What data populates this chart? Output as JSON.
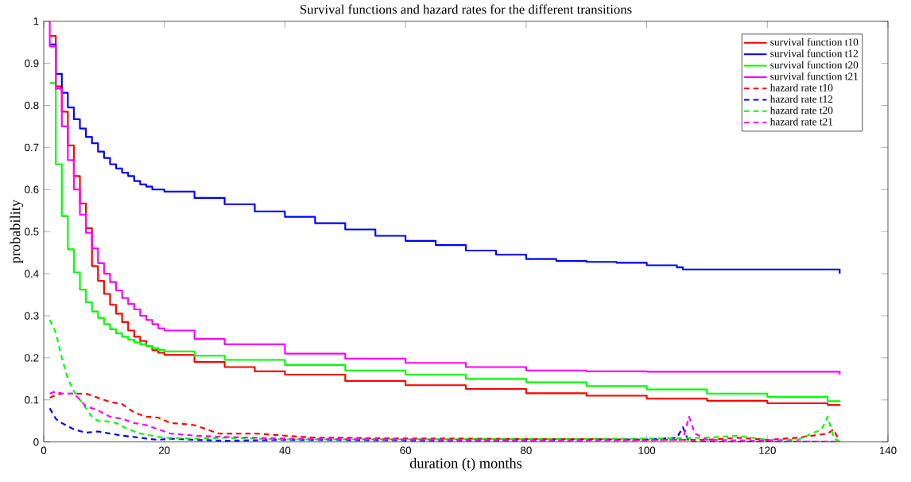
{
  "chart_data": {
    "type": "line",
    "title": "Survival functions and hazard rates for the different transitions",
    "xlabel": "duration (t) months",
    "ylabel": "probability",
    "xlim": [
      0,
      140
    ],
    "xticks": [
      0,
      20,
      40,
      60,
      80,
      100,
      120,
      140
    ],
    "ylim": [
      0,
      1
    ],
    "yticks": [
      0,
      0.1,
      0.2,
      0.3,
      0.4,
      0.5,
      0.6,
      0.7,
      0.8,
      0.9,
      1
    ],
    "grid": false,
    "legend": "top right",
    "series": [
      {
        "name": "survival function t10",
        "type": "step",
        "line_style": "solid",
        "color": "#ff0000",
        "x": [
          1,
          2,
          3,
          4,
          5,
          6,
          7,
          8,
          9,
          10,
          11,
          12,
          13,
          14,
          15,
          16,
          17,
          18,
          19,
          20,
          25,
          30,
          35,
          40,
          50,
          60,
          70,
          80,
          90,
          100,
          110,
          120,
          130,
          132
        ],
        "values": [
          0.965,
          0.845,
          0.785,
          0.705,
          0.632,
          0.567,
          0.508,
          0.418,
          0.383,
          0.352,
          0.326,
          0.305,
          0.285,
          0.265,
          0.25,
          0.24,
          0.228,
          0.218,
          0.212,
          0.207,
          0.19,
          0.178,
          0.168,
          0.16,
          0.145,
          0.135,
          0.126,
          0.116,
          0.11,
          0.103,
          0.098,
          0.092,
          0.088,
          0.086
        ]
      },
      {
        "name": "survival function t12",
        "type": "step",
        "line_style": "solid",
        "color": "#0000ff",
        "x": [
          1,
          2,
          3,
          4,
          5,
          6,
          7,
          8,
          9,
          10,
          11,
          12,
          13,
          14,
          15,
          16,
          17,
          18,
          20,
          25,
          30,
          35,
          40,
          45,
          50,
          55,
          60,
          65,
          70,
          75,
          80,
          85,
          90,
          95,
          100,
          105,
          106,
          132,
          132
        ],
        "values": [
          0.945,
          0.875,
          0.83,
          0.795,
          0.767,
          0.745,
          0.725,
          0.71,
          0.69,
          0.675,
          0.66,
          0.65,
          0.64,
          0.632,
          0.62,
          0.612,
          0.607,
          0.6,
          0.595,
          0.58,
          0.565,
          0.548,
          0.535,
          0.52,
          0.505,
          0.49,
          0.478,
          0.468,
          0.455,
          0.445,
          0.435,
          0.43,
          0.428,
          0.426,
          0.42,
          0.415,
          0.41,
          0.41,
          0.4
        ]
      },
      {
        "name": "survival function t20",
        "type": "step",
        "line_style": "solid",
        "color": "#00ff00",
        "x": [
          1,
          2,
          3,
          4,
          5,
          6,
          7,
          8,
          9,
          10,
          11,
          12,
          13,
          14,
          15,
          16,
          17,
          18,
          19,
          20,
          25,
          30,
          40,
          50,
          60,
          70,
          80,
          90,
          100,
          110,
          120,
          130,
          132
        ],
        "values": [
          0.853,
          0.66,
          0.537,
          0.458,
          0.403,
          0.362,
          0.332,
          0.31,
          0.295,
          0.28,
          0.268,
          0.258,
          0.25,
          0.243,
          0.237,
          0.232,
          0.228,
          0.223,
          0.219,
          0.215,
          0.205,
          0.195,
          0.183,
          0.17,
          0.16,
          0.15,
          0.142,
          0.133,
          0.125,
          0.115,
          0.107,
          0.097,
          0.095
        ]
      },
      {
        "name": "survival function t21",
        "type": "step",
        "line_style": "solid",
        "color": "#ff00ff",
        "x": [
          1,
          1,
          2,
          3,
          4,
          5,
          6,
          7,
          8,
          9,
          10,
          11,
          12,
          13,
          14,
          15,
          16,
          17,
          18,
          19,
          20,
          25,
          30,
          40,
          50,
          60,
          70,
          80,
          90,
          100,
          132,
          132
        ],
        "values": [
          1,
          0.94,
          0.84,
          0.75,
          0.67,
          0.6,
          0.54,
          0.497,
          0.46,
          0.425,
          0.4,
          0.38,
          0.36,
          0.342,
          0.328,
          0.315,
          0.3,
          0.29,
          0.28,
          0.27,
          0.265,
          0.245,
          0.232,
          0.21,
          0.198,
          0.188,
          0.178,
          0.17,
          0.168,
          0.167,
          0.165,
          0.16
        ]
      },
      {
        "name": "hazard rate t10",
        "line_style": "dashed",
        "color": "#ff0000",
        "x": [
          1,
          2,
          3,
          5,
          7,
          9,
          11,
          13,
          15,
          17,
          19,
          21,
          23,
          25,
          27,
          29,
          31,
          35,
          40,
          45,
          50,
          60,
          70,
          80,
          90,
          100,
          110,
          115,
          120,
          125,
          130,
          131,
          132
        ],
        "values": [
          0.105,
          0.112,
          0.115,
          0.115,
          0.115,
          0.105,
          0.095,
          0.09,
          0.07,
          0.06,
          0.058,
          0.045,
          0.043,
          0.04,
          0.03,
          0.02,
          0.02,
          0.02,
          0.015,
          0.01,
          0.01,
          0.008,
          0.008,
          0.007,
          0.007,
          0.005,
          0.005,
          0.01,
          0.005,
          0.01,
          0.02,
          0.03,
          0
        ]
      },
      {
        "name": "hazard rate t12",
        "line_style": "dashed",
        "color": "#0000ff",
        "x": [
          1,
          2,
          3,
          5,
          7,
          9,
          11,
          13,
          15,
          17,
          19,
          21,
          25,
          30,
          40,
          60,
          80,
          100,
          105,
          106,
          107,
          132
        ],
        "values": [
          0.08,
          0.055,
          0.045,
          0.03,
          0.022,
          0.025,
          0.02,
          0.015,
          0.012,
          0.008,
          0.005,
          0.008,
          0.005,
          0.003,
          0.005,
          0.004,
          0.004,
          0.006,
          0.01,
          0.035,
          0,
          0
        ]
      },
      {
        "name": "hazard rate t20",
        "line_style": "dashed",
        "color": "#00ff00",
        "x": [
          1,
          2,
          3,
          4,
          5,
          6,
          7,
          8,
          9,
          10,
          12,
          14,
          16,
          18,
          20,
          25,
          30,
          40,
          60,
          80,
          100,
          110,
          115,
          120,
          125,
          129,
          130,
          131,
          132
        ],
        "values": [
          0.29,
          0.26,
          0.2,
          0.15,
          0.12,
          0.1,
          0.08,
          0.06,
          0.05,
          0.05,
          0.045,
          0.03,
          0.02,
          0.015,
          0.01,
          0.008,
          0.01,
          0.006,
          0.006,
          0.007,
          0.008,
          0.01,
          0.015,
          0.005,
          0.005,
          0.03,
          0.06,
          0.01,
          0
        ]
      },
      {
        "name": "hazard rate t21",
        "line_style": "dashed",
        "color": "#ff00ff",
        "x": [
          1,
          2,
          3,
          5,
          6,
          7,
          9,
          11,
          13,
          15,
          17,
          19,
          21,
          25,
          30,
          40,
          60,
          80,
          100,
          106,
          107,
          108,
          110,
          132
        ],
        "values": [
          0.115,
          0.12,
          0.115,
          0.115,
          0.1,
          0.085,
          0.075,
          0.06,
          0.055,
          0.045,
          0.04,
          0.03,
          0.02,
          0.015,
          0.012,
          0.008,
          0.006,
          0.004,
          0.004,
          0.005,
          0.06,
          0.02,
          0.005,
          0
        ]
      }
    ]
  }
}
